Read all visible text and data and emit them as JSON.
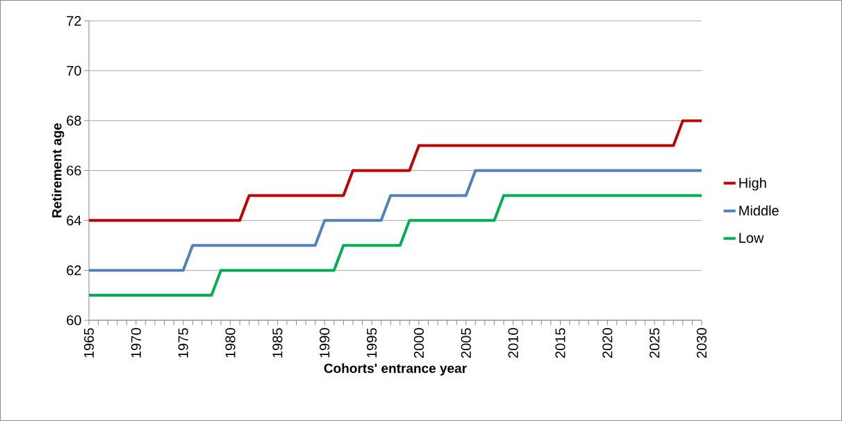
{
  "chart_data": {
    "type": "line",
    "xlabel": "Cohorts' entrance year",
    "ylabel": "Retirement age",
    "x": [
      1965,
      1966,
      1967,
      1968,
      1969,
      1970,
      1971,
      1972,
      1973,
      1974,
      1975,
      1976,
      1977,
      1978,
      1979,
      1980,
      1981,
      1982,
      1983,
      1984,
      1985,
      1986,
      1987,
      1988,
      1989,
      1990,
      1991,
      1992,
      1993,
      1994,
      1995,
      1996,
      1997,
      1998,
      1999,
      2000,
      2001,
      2002,
      2003,
      2004,
      2005,
      2006,
      2007,
      2008,
      2009,
      2010,
      2011,
      2012,
      2013,
      2014,
      2015,
      2016,
      2017,
      2018,
      2019,
      2020,
      2021,
      2022,
      2023,
      2024,
      2025,
      2026,
      2027,
      2028,
      2029,
      2030
    ],
    "series": [
      {
        "name": "High",
        "color": "#c00000",
        "values": [
          64,
          64,
          64,
          64,
          64,
          64,
          64,
          64,
          64,
          64,
          64,
          64,
          64,
          64,
          64,
          64,
          64,
          65,
          65,
          65,
          65,
          65,
          65,
          65,
          65,
          65,
          65,
          65,
          66,
          66,
          66,
          66,
          66,
          66,
          66,
          67,
          67,
          67,
          67,
          67,
          67,
          67,
          67,
          67,
          67,
          67,
          67,
          67,
          67,
          67,
          67,
          67,
          67,
          67,
          67,
          67,
          67,
          67,
          67,
          67,
          67,
          67,
          67,
          68,
          68,
          68
        ]
      },
      {
        "name": "Middle",
        "color": "#4f81bd",
        "values": [
          62,
          62,
          62,
          62,
          62,
          62,
          62,
          62,
          62,
          62,
          62,
          63,
          63,
          63,
          63,
          63,
          63,
          63,
          63,
          63,
          63,
          63,
          63,
          63,
          63,
          64,
          64,
          64,
          64,
          64,
          64,
          64,
          65,
          65,
          65,
          65,
          65,
          65,
          65,
          65,
          65,
          66,
          66,
          66,
          66,
          66,
          66,
          66,
          66,
          66,
          66,
          66,
          66,
          66,
          66,
          66,
          66,
          66,
          66,
          66,
          66,
          66,
          66,
          66,
          66,
          66
        ]
      },
      {
        "name": "Low",
        "color": "#00b050",
        "values": [
          61,
          61,
          61,
          61,
          61,
          61,
          61,
          61,
          61,
          61,
          61,
          61,
          61,
          61,
          62,
          62,
          62,
          62,
          62,
          62,
          62,
          62,
          62,
          62,
          62,
          62,
          62,
          63,
          63,
          63,
          63,
          63,
          63,
          63,
          64,
          64,
          64,
          64,
          64,
          64,
          64,
          64,
          64,
          64,
          65,
          65,
          65,
          65,
          65,
          65,
          65,
          65,
          65,
          65,
          65,
          65,
          65,
          65,
          65,
          65,
          65,
          65,
          65,
          65,
          65,
          65
        ]
      }
    ],
    "xlim": [
      1965,
      2030
    ],
    "xticks": [
      1965,
      1970,
      1975,
      1980,
      1985,
      1990,
      1995,
      2000,
      2005,
      2010,
      2015,
      2020,
      2025,
      2030
    ],
    "ylim": [
      60,
      72
    ],
    "yticks": [
      60,
      62,
      64,
      66,
      68,
      70,
      72
    ],
    "grid": "y",
    "legend": "right",
    "marker": "none",
    "line_style": "solid"
  }
}
